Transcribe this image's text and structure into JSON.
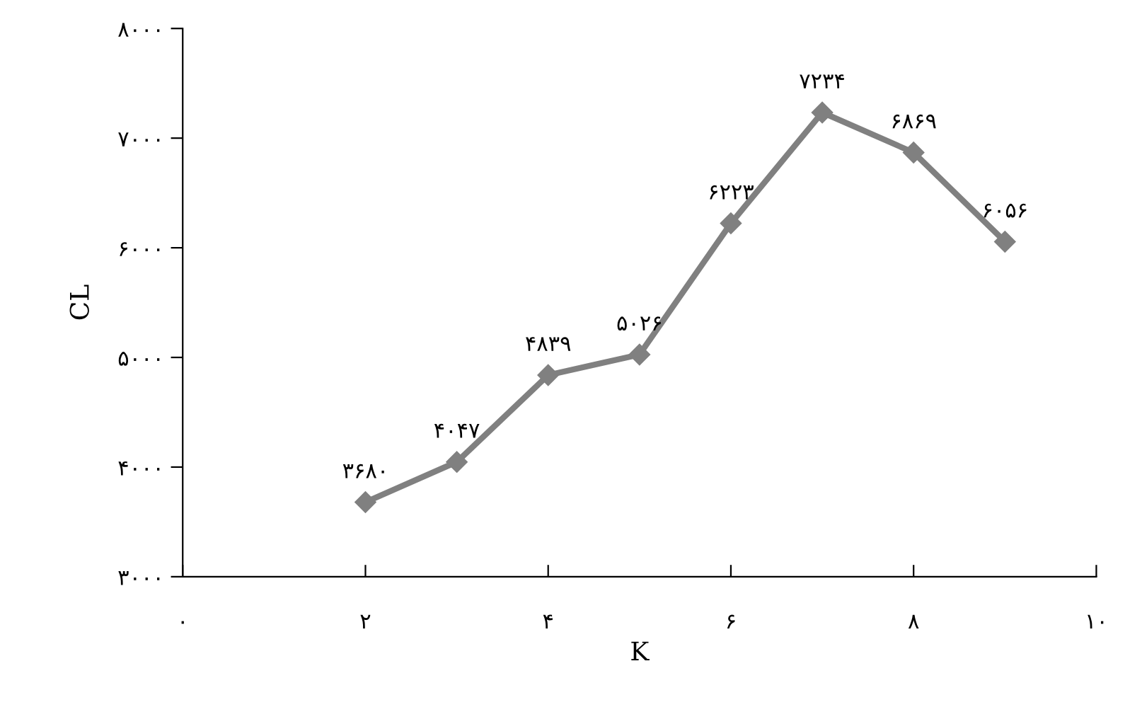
{
  "chart_data": {
    "type": "line",
    "xlabel": "K",
    "ylabel": "CL",
    "x": [
      2,
      3,
      4,
      5,
      6,
      7,
      8,
      9
    ],
    "series": [
      {
        "color": "#808080",
        "values": [
          3680,
          4047,
          4839,
          5026,
          6223,
          7234,
          6869,
          6056
        ],
        "value_labels": [
          "۳۶۸۰",
          "۴۰۴۷",
          "۴۸۳۹",
          "۵۰۲۶",
          "۶۲۲۳",
          "۷۲۳۴",
          "۶۸۶۹",
          "۶۰۵۶"
        ]
      }
    ],
    "xlim": [
      0,
      10
    ],
    "xticks": [
      {
        "value": 0,
        "label": "۰"
      },
      {
        "value": 2,
        "label": "۲"
      },
      {
        "value": 4,
        "label": "۴"
      },
      {
        "value": 6,
        "label": "۶"
      },
      {
        "value": 8,
        "label": "۸"
      },
      {
        "value": 10,
        "label": "۱۰"
      }
    ],
    "ylim": [
      3000,
      8000
    ],
    "yticks": [
      {
        "value": 3000,
        "label": "۳۰۰۰"
      },
      {
        "value": 4000,
        "label": "۴۰۰۰"
      },
      {
        "value": 5000,
        "label": "۵۰۰۰"
      },
      {
        "value": 6000,
        "label": "۶۰۰۰"
      },
      {
        "value": 7000,
        "label": "۷۰۰۰"
      },
      {
        "value": 8000,
        "label": "۸۰۰۰"
      }
    ],
    "grid": false,
    "legend": false,
    "marker": "diamond",
    "line_style": "solid"
  }
}
